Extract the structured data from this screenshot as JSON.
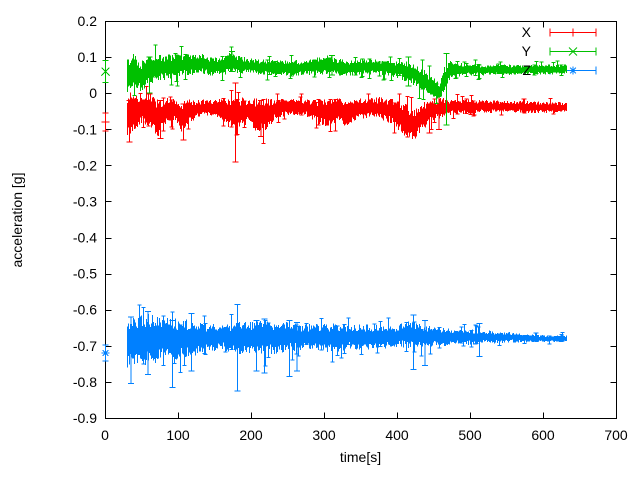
{
  "chart_data": {
    "type": "scatter",
    "style": "points-with-errorbars",
    "title": "",
    "xlabel": "time[s]",
    "ylabel": "acceleration [g]",
    "xlim": [
      0,
      700
    ],
    "ylim": [
      -0.9,
      0.2
    ],
    "grid": false,
    "background_color": "#ffffff",
    "axis_color": "#000000",
    "x_ticks": {
      "values": [
        0,
        100,
        200,
        300,
        400,
        500,
        600,
        700
      ],
      "labels": [
        "0",
        "100",
        "200",
        "300",
        "400",
        "500",
        "600",
        "700"
      ]
    },
    "y_ticks": {
      "values": [
        0.2,
        0.1,
        0,
        -0.1,
        -0.2,
        -0.3,
        -0.4,
        -0.5,
        -0.6,
        -0.7,
        -0.8,
        -0.9
      ],
      "labels": [
        "0.2",
        "0.1",
        "0",
        "-0.1",
        "-0.2",
        "-0.3",
        "-0.4",
        "-0.5",
        "-0.6",
        "-0.7",
        "-0.8",
        "-0.9"
      ]
    },
    "legend": {
      "position": "top-right-inside",
      "entries": [
        "X",
        "Y",
        "Z"
      ]
    },
    "series": [
      {
        "name": "X",
        "color": "#ff0000",
        "marker": "plus",
        "t_start": 30,
        "t_end": 632,
        "first_point": {
          "t": 0,
          "value": -0.08,
          "err": 0.025
        },
        "band_keyframes": [
          [
            30,
            -0.06,
            0.055
          ],
          [
            38,
            -0.05,
            0.05
          ],
          [
            50,
            -0.045,
            0.035
          ],
          [
            62,
            -0.05,
            0.04
          ],
          [
            72,
            -0.07,
            0.05
          ],
          [
            82,
            -0.05,
            0.035
          ],
          [
            95,
            -0.048,
            0.03
          ],
          [
            105,
            -0.068,
            0.045
          ],
          [
            115,
            -0.05,
            0.03
          ],
          [
            130,
            -0.042,
            0.022
          ],
          [
            150,
            -0.04,
            0.02
          ],
          [
            168,
            -0.052,
            0.038
          ],
          [
            180,
            -0.055,
            0.042
          ],
          [
            195,
            -0.048,
            0.035
          ],
          [
            210,
            -0.065,
            0.045
          ],
          [
            222,
            -0.058,
            0.04
          ],
          [
            235,
            -0.042,
            0.025
          ],
          [
            255,
            -0.038,
            0.02
          ],
          [
            275,
            -0.04,
            0.022
          ],
          [
            290,
            -0.05,
            0.032
          ],
          [
            305,
            -0.055,
            0.035
          ],
          [
            318,
            -0.045,
            0.03
          ],
          [
            330,
            -0.055,
            0.035
          ],
          [
            342,
            -0.045,
            0.028
          ],
          [
            355,
            -0.042,
            0.025
          ],
          [
            368,
            -0.04,
            0.028
          ],
          [
            382,
            -0.045,
            0.03
          ],
          [
            395,
            -0.05,
            0.032
          ],
          [
            408,
            -0.07,
            0.045
          ],
          [
            422,
            -0.09,
            0.042
          ],
          [
            435,
            -0.065,
            0.035
          ],
          [
            448,
            -0.045,
            0.028
          ],
          [
            462,
            -0.04,
            0.025
          ],
          [
            480,
            -0.038,
            0.02
          ],
          [
            510,
            -0.037,
            0.017
          ],
          [
            560,
            -0.038,
            0.015
          ],
          [
            632,
            -0.04,
            0.015
          ]
        ],
        "outlier_errorbars": [
          [
            178,
            -0.19,
            0.028
          ],
          [
            33,
            -0.135,
            -0.02
          ],
          [
            75,
            -0.125,
            -0.02
          ],
          [
            107,
            -0.13,
            -0.03
          ],
          [
            213,
            -0.12,
            -0.02
          ],
          [
            444,
            -0.11,
            -0.03
          ],
          [
            457,
            -0.1,
            0.0
          ]
        ]
      },
      {
        "name": "Y",
        "color": "#00c000",
        "marker": "cross",
        "t_start": 30,
        "t_end": 632,
        "first_point": {
          "t": 0,
          "value": 0.06,
          "err": 0.03
        },
        "band_keyframes": [
          [
            30,
            0.05,
            0.05
          ],
          [
            40,
            0.06,
            0.045
          ],
          [
            48,
            0.045,
            0.04
          ],
          [
            58,
            0.06,
            0.04
          ],
          [
            70,
            0.07,
            0.035
          ],
          [
            85,
            0.072,
            0.032
          ],
          [
            100,
            0.075,
            0.03
          ],
          [
            115,
            0.08,
            0.028
          ],
          [
            130,
            0.082,
            0.026
          ],
          [
            145,
            0.075,
            0.025
          ],
          [
            160,
            0.075,
            0.025
          ],
          [
            172,
            0.088,
            0.03
          ],
          [
            185,
            0.078,
            0.022
          ],
          [
            200,
            0.075,
            0.02
          ],
          [
            220,
            0.072,
            0.02
          ],
          [
            240,
            0.07,
            0.02
          ],
          [
            260,
            0.07,
            0.02
          ],
          [
            280,
            0.072,
            0.022
          ],
          [
            300,
            0.08,
            0.026
          ],
          [
            315,
            0.075,
            0.022
          ],
          [
            330,
            0.068,
            0.02
          ],
          [
            350,
            0.072,
            0.02
          ],
          [
            370,
            0.075,
            0.02
          ],
          [
            390,
            0.068,
            0.02
          ],
          [
            405,
            0.065,
            0.024
          ],
          [
            420,
            0.055,
            0.03
          ],
          [
            435,
            0.035,
            0.032
          ],
          [
            448,
            0.015,
            0.028
          ],
          [
            458,
            0.008,
            0.022
          ],
          [
            465,
            0.04,
            0.035
          ],
          [
            472,
            0.065,
            0.022
          ],
          [
            490,
            0.065,
            0.016
          ],
          [
            520,
            0.064,
            0.014
          ],
          [
            560,
            0.065,
            0.013
          ],
          [
            632,
            0.066,
            0.013
          ]
        ],
        "outlier_errorbars": [
          [
            467,
            -0.088,
            0.11
          ],
          [
            60,
            0.0,
            0.1
          ],
          [
            173,
            0.06,
            0.115
          ],
          [
            310,
            0.05,
            0.105
          ],
          [
            415,
            0.02,
            0.1
          ]
        ]
      },
      {
        "name": "Z",
        "color": "#0080ff",
        "marker": "star",
        "t_start": 30,
        "t_end": 632,
        "first_point": {
          "t": 0,
          "value": -0.72,
          "err": 0.022
        },
        "band_keyframes": [
          [
            30,
            -0.69,
            0.065
          ],
          [
            45,
            -0.685,
            0.07
          ],
          [
            60,
            -0.682,
            0.065
          ],
          [
            75,
            -0.68,
            0.06
          ],
          [
            90,
            -0.682,
            0.058
          ],
          [
            105,
            -0.68,
            0.05
          ],
          [
            120,
            -0.68,
            0.045
          ],
          [
            140,
            -0.678,
            0.038
          ],
          [
            160,
            -0.676,
            0.03
          ],
          [
            180,
            -0.68,
            0.042
          ],
          [
            200,
            -0.678,
            0.04
          ],
          [
            215,
            -0.675,
            0.045
          ],
          [
            235,
            -0.678,
            0.042
          ],
          [
            255,
            -0.675,
            0.038
          ],
          [
            275,
            -0.675,
            0.032
          ],
          [
            295,
            -0.678,
            0.035
          ],
          [
            315,
            -0.68,
            0.038
          ],
          [
            335,
            -0.675,
            0.03
          ],
          [
            355,
            -0.678,
            0.035
          ],
          [
            375,
            -0.675,
            0.03
          ],
          [
            395,
            -0.675,
            0.028
          ],
          [
            415,
            -0.668,
            0.035
          ],
          [
            430,
            -0.672,
            0.032
          ],
          [
            450,
            -0.675,
            0.025
          ],
          [
            475,
            -0.675,
            0.022
          ],
          [
            500,
            -0.676,
            0.02
          ],
          [
            530,
            -0.676,
            0.016
          ],
          [
            560,
            -0.677,
            0.013
          ],
          [
            590,
            -0.68,
            0.01
          ],
          [
            632,
            -0.68,
            0.009
          ]
        ],
        "outlier_errorbars": [
          [
            35,
            -0.805,
            -0.62
          ],
          [
            58,
            -0.78,
            -0.605
          ],
          [
            92,
            -0.815,
            -0.63
          ],
          [
            118,
            -0.77,
            -0.61
          ],
          [
            181,
            -0.825,
            -0.585
          ],
          [
            207,
            -0.77,
            -0.63
          ],
          [
            218,
            -0.775,
            -0.625
          ],
          [
            252,
            -0.785,
            -0.63
          ],
          [
            262,
            -0.77,
            -0.635
          ],
          [
            422,
            -0.765,
            -0.615
          ],
          [
            438,
            -0.755,
            -0.63
          ],
          [
            512,
            -0.73,
            -0.638
          ]
        ]
      }
    ]
  }
}
